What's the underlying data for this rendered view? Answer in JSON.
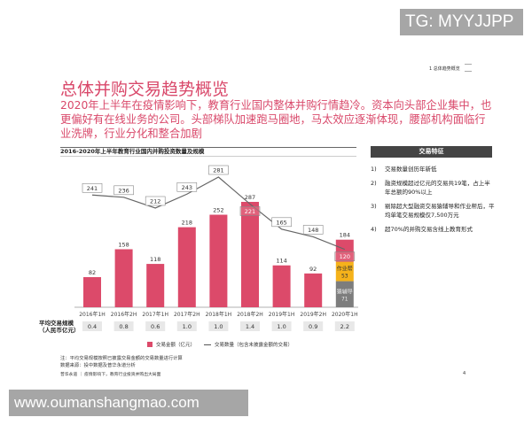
{
  "watermarks": {
    "top": "TG: MYYJJPP",
    "bottom": "www.oumanshangmao.com"
  },
  "breadcrumb": "1 总体趋势概览",
  "title": "总体并购交易趋势概览",
  "intro": "2020年上半年在疫情影响下，教育行业国内整体并购行情趋冷。资本向头部企业集中，也更偏好有在线业务的公司。头部梯队加速跑马圈地，马太效应逐渐体现，腰部机构面临行业洗牌，行业分化和整合加剧",
  "panel": {
    "title": "交易特征",
    "items": [
      {
        "num": "1)",
        "text": "交易数量创历年新低"
      },
      {
        "num": "2)",
        "text": "融资规模超过亿元的交易共19笔，占上半年总额的90%以上"
      },
      {
        "num": "3)",
        "text": "剔除超大型融资交易猿辅导和作业帮后，平均单笔交易规模仅7,500万元"
      },
      {
        "num": "4)",
        "text": "超70%的并购交易含线上教育形式"
      }
    ]
  },
  "avg_label_line1": "平均交易规模",
  "avg_label_line2": "（人民币亿元）",
  "legend": {
    "bar": "交易金额（亿元）",
    "line": "交易数量（包含未披露金额的交易）"
  },
  "notes": [
    "注：平均交易规模按照已披露交易金额的交易数量进行计算",
    "数据来源：投中数据及普华永道分析"
  ],
  "footer": "普华永道 ｜ 疫情影响下，教育行业投资并购出大局面",
  "page_number": "4",
  "colors": {
    "accent": "#d9486a",
    "bar": "#dc4a6a",
    "yellow": "#f5b21a",
    "gray": "#7d7d7d"
  },
  "chart_data": {
    "type": "bar+line",
    "title": "2016-2020年上半年教育行业国内并购投资数量及规模",
    "categories": [
      "2016年1H",
      "2016年2H",
      "2017年1H",
      "2017年2H",
      "2018年1H",
      "2018年2H",
      "2019年1H",
      "2019年2H",
      "2020年1H"
    ],
    "series": [
      {
        "name": "交易金额（亿元）",
        "type": "bar",
        "values": [
          82,
          158,
          118,
          218,
          252,
          287,
          114,
          92,
          184
        ]
      },
      {
        "name": "交易数量（包含未披露金额的交易）",
        "type": "line",
        "values": [
          241,
          236,
          212,
          243,
          281,
          221,
          165,
          148,
          120
        ]
      }
    ],
    "stack_2020_1H": [
      {
        "label": "猿辅导",
        "value": 71
      },
      {
        "label": "作业帮",
        "value": 53
      },
      {
        "label": "",
        "value": 60
      }
    ],
    "avg_deal_size": [
      "0.4",
      "0.8",
      "0.6",
      "1.0",
      "1.0",
      "1.4",
      "1.0",
      "0.9",
      "2.2"
    ],
    "legend": "bottom"
  }
}
